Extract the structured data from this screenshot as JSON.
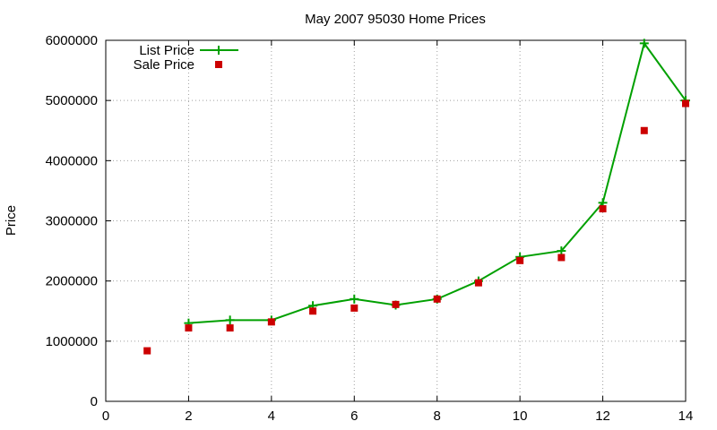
{
  "chart_data": {
    "type": "line",
    "title": "May 2007 95030 Home Prices",
    "xlabel": "",
    "ylabel": "Price",
    "xlim": [
      0,
      14
    ],
    "ylim": [
      0,
      6000000
    ],
    "x_ticks": [
      0,
      2,
      4,
      6,
      8,
      10,
      12,
      14
    ],
    "y_ticks": [
      0,
      1000000,
      2000000,
      3000000,
      4000000,
      5000000,
      6000000
    ],
    "grid": true,
    "legend_position": "top-left",
    "series": [
      {
        "name": "List Price",
        "style": "line-with-plus-markers",
        "color": "#00a000",
        "x": [
          2,
          3,
          4,
          5,
          6,
          7,
          8,
          9,
          10,
          11,
          12,
          13,
          14
        ],
        "y": [
          1300000,
          1350000,
          1350000,
          1590000,
          1700000,
          1600000,
          1700000,
          2000000,
          2400000,
          2500000,
          3300000,
          5950000,
          5000000
        ]
      },
      {
        "name": "Sale Price",
        "style": "square-points",
        "color": "#cc0000",
        "x": [
          1,
          2,
          3,
          4,
          5,
          6,
          7,
          8,
          9,
          10,
          11,
          12,
          13,
          14
        ],
        "y": [
          840000,
          1220000,
          1220000,
          1320000,
          1500000,
          1550000,
          1610000,
          1700000,
          1970000,
          2340000,
          2390000,
          3200000,
          4500000,
          4950000
        ]
      }
    ]
  }
}
